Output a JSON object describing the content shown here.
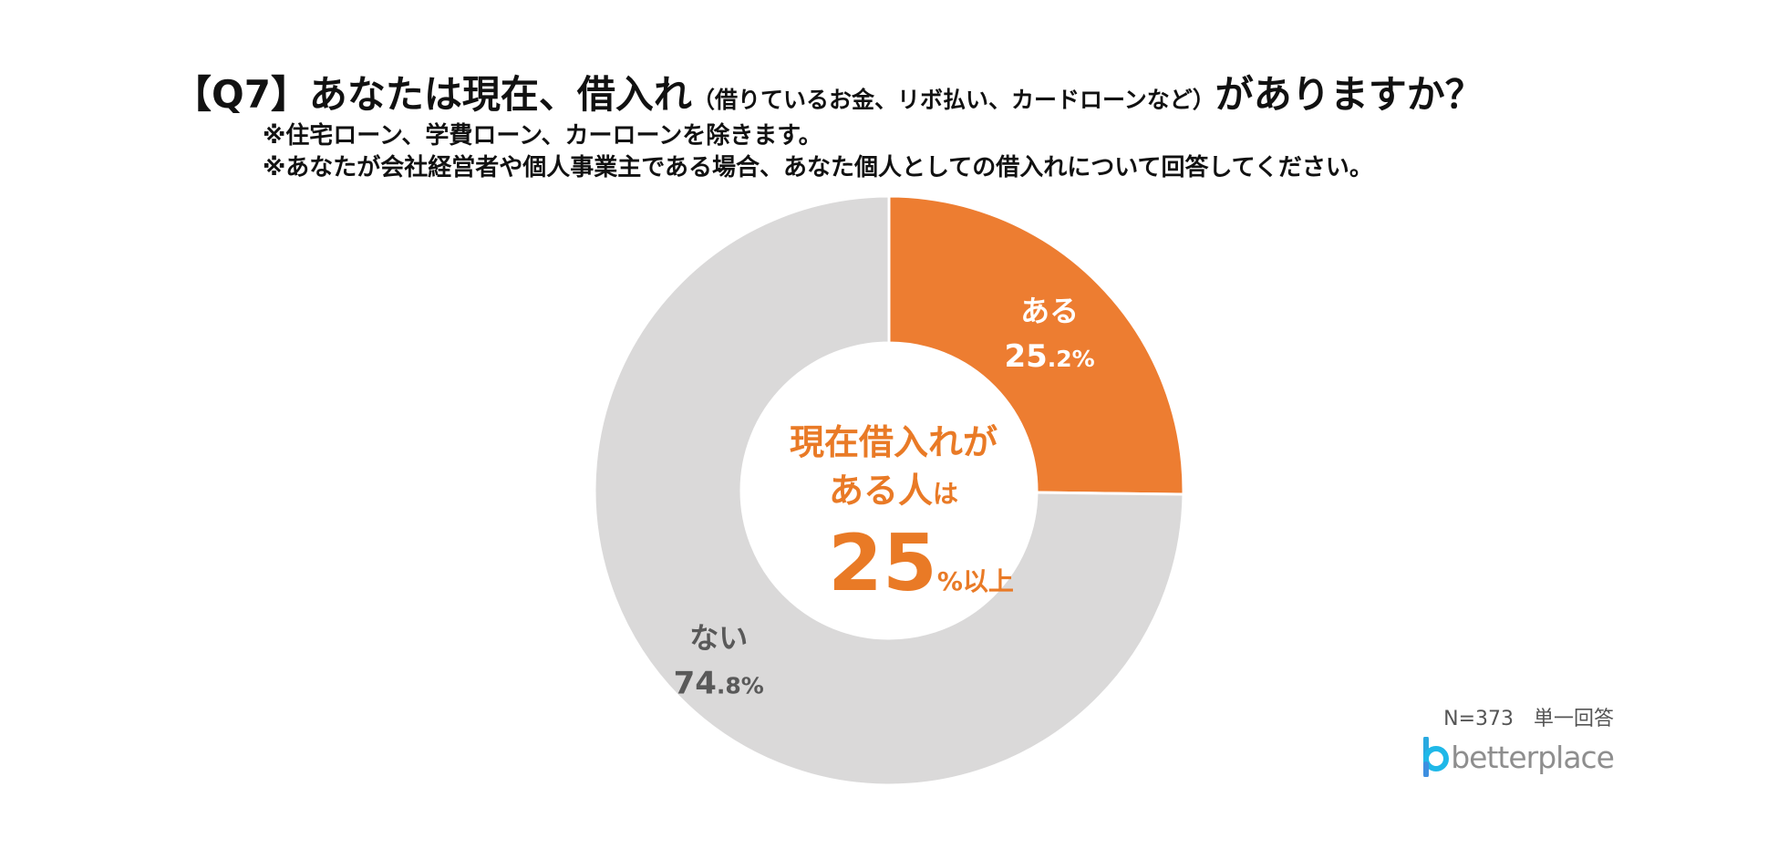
{
  "header": {
    "title_main": "【Q7】あなたは現在、借入れ",
    "title_paren": "（借りているお金、リボ払い、カードローンなど）",
    "title_end": "がありますか？",
    "note1": "※住宅ローン、学費ローン、カーローンを除きます。",
    "note2": "※あなたが会社経営者や個人事業主である場合、あなた個人としての借入れについて回答してください。"
  },
  "center": {
    "line1": "現在借入れが",
    "line2_main": "ある人",
    "line2_small": "は",
    "big_number": "25",
    "big_suffix": "%以上"
  },
  "footer": {
    "sample": "N=373　単一回答",
    "logo_text": "betterplace"
  },
  "colors": {
    "accent": "#E97A26",
    "slice_yes": "#ED7D31",
    "slice_no": "#DAD9D9",
    "label_no": "#595959",
    "logo_blue": "#29A9E0"
  },
  "chart_data": {
    "type": "pie",
    "style": "donut",
    "slices": [
      {
        "label": "ある",
        "value": 25.2,
        "int": "25",
        "dec": ".2%",
        "color": "#ED7D31",
        "label_color": "#ffffff"
      },
      {
        "label": "ない",
        "value": 74.8,
        "int": "74",
        "dec": ".8%",
        "color": "#DAD9D9",
        "label_color": "#595959"
      }
    ]
  }
}
